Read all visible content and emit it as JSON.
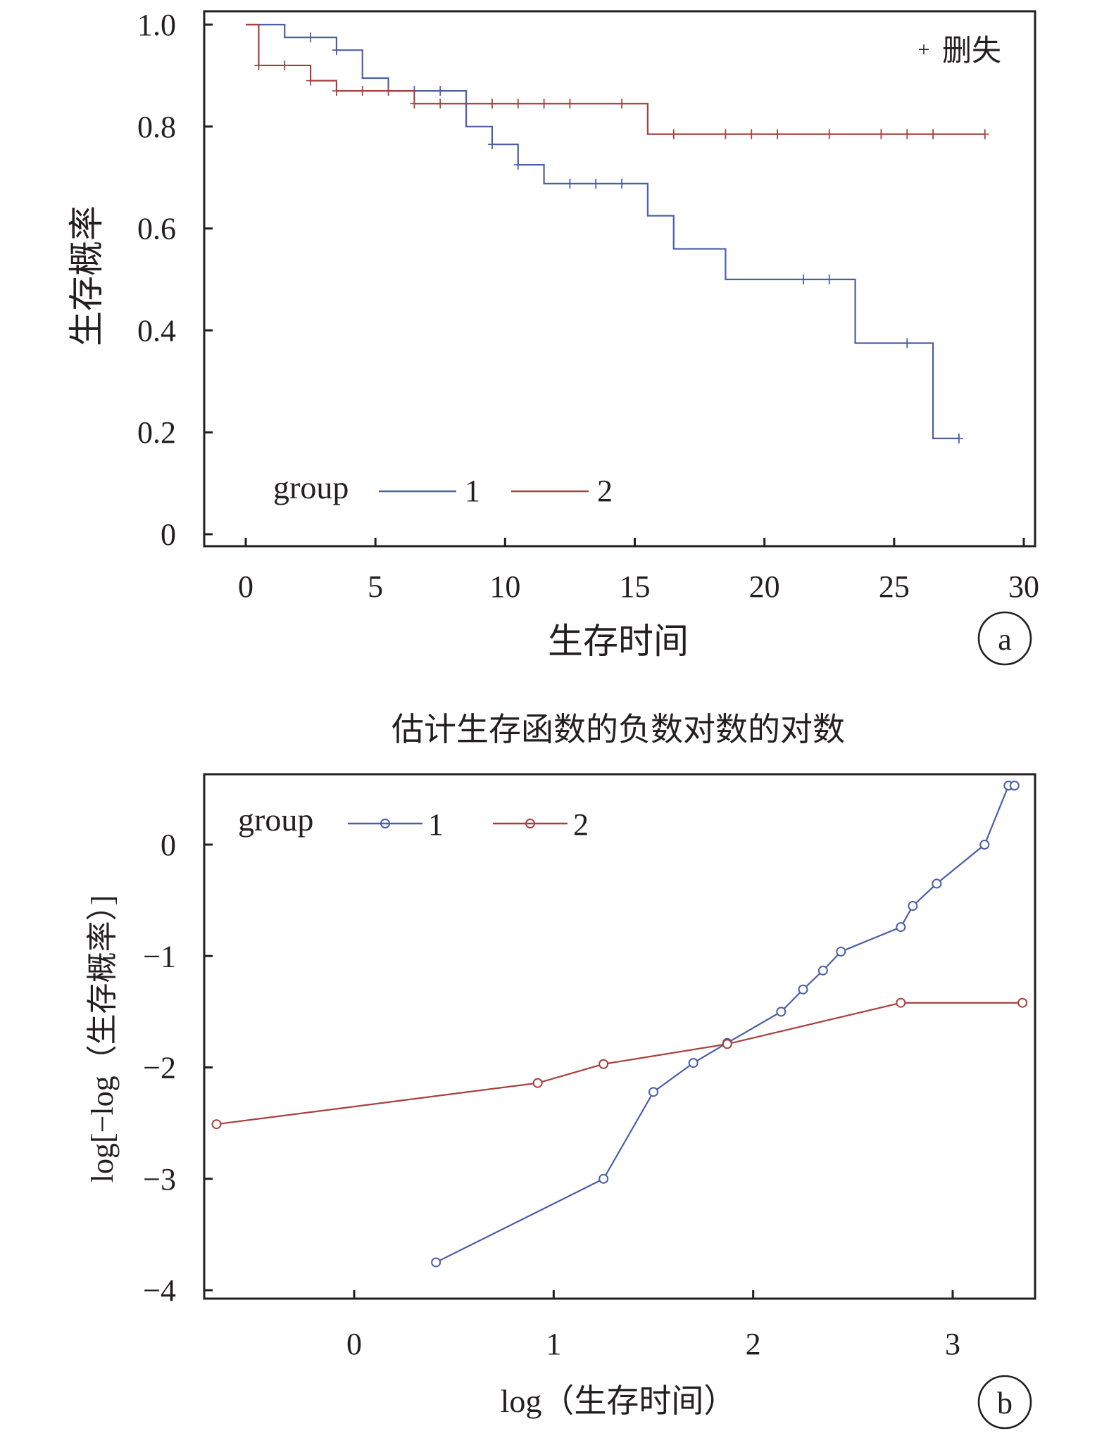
{
  "chart_data": [
    {
      "type": "line",
      "subtype": "kaplan-meier",
      "panel_label": "a",
      "title": "",
      "xlabel": "生存时间",
      "ylabel": "生存概率",
      "xlim": [
        -1.5,
        30.5
      ],
      "ylim": [
        -0.02,
        1.03
      ],
      "xticks": [
        0,
        5,
        10,
        15,
        20,
        25,
        30
      ],
      "xtick_labels": [
        "0",
        "5",
        "10",
        "15",
        "20",
        "25",
        "30"
      ],
      "yticks": [
        0,
        0.2,
        0.4,
        0.6,
        0.8,
        1.0
      ],
      "ytick_labels": [
        "0",
        "0.2",
        "0.4",
        "0.6",
        "0.8",
        "1.0"
      ],
      "grid": false,
      "legend_title": "group",
      "legend_position": "bottom-left",
      "censor_legend": {
        "symbol": "+",
        "label": "删失",
        "position": "top-right"
      },
      "series": [
        {
          "name": "1",
          "color": "#4b5ea8",
          "steps": [
            [
              0,
              1.0
            ],
            [
              1.5,
              0.975
            ],
            [
              3.5,
              0.95
            ],
            [
              4.5,
              0.895
            ],
            [
              5.5,
              0.87
            ],
            [
              8.5,
              0.8
            ],
            [
              9.5,
              0.765
            ],
            [
              10.5,
              0.725
            ],
            [
              11.5,
              0.688
            ],
            [
              15.5,
              0.625
            ],
            [
              16.5,
              0.56
            ],
            [
              18.5,
              0.5
            ],
            [
              23.5,
              0.375
            ],
            [
              26.5,
              0.188
            ],
            [
              27.5,
              0.188
            ]
          ],
          "censored": [
            [
              2.5,
              0.975
            ],
            [
              3.5,
              0.95
            ],
            [
              6.5,
              0.87
            ],
            [
              7.5,
              0.87
            ],
            [
              9.5,
              0.765
            ],
            [
              10.5,
              0.725
            ],
            [
              12.5,
              0.688
            ],
            [
              13.5,
              0.688
            ],
            [
              14.5,
              0.688
            ],
            [
              21.5,
              0.5
            ],
            [
              22.5,
              0.5
            ],
            [
              25.5,
              0.375
            ],
            [
              27.5,
              0.188
            ]
          ]
        },
        {
          "name": "2",
          "color": "#a6403e",
          "steps": [
            [
              0,
              1.0
            ],
            [
              0.5,
              0.92
            ],
            [
              2.5,
              0.89
            ],
            [
              3.5,
              0.87
            ],
            [
              6.5,
              0.845
            ],
            [
              15.5,
              0.785
            ],
            [
              28.5,
              0.785
            ]
          ],
          "censored": [
            [
              0.5,
              0.92
            ],
            [
              1.5,
              0.92
            ],
            [
              2.5,
              0.89
            ],
            [
              3.5,
              0.87
            ],
            [
              4.5,
              0.87
            ],
            [
              5.5,
              0.87
            ],
            [
              6.5,
              0.845
            ],
            [
              7.5,
              0.845
            ],
            [
              9.5,
              0.845
            ],
            [
              10.5,
              0.845
            ],
            [
              11.5,
              0.845
            ],
            [
              12.5,
              0.845
            ],
            [
              14.5,
              0.845
            ],
            [
              16.5,
              0.785
            ],
            [
              18.5,
              0.785
            ],
            [
              19.5,
              0.785
            ],
            [
              20.5,
              0.785
            ],
            [
              22.5,
              0.785
            ],
            [
              24.5,
              0.785
            ],
            [
              25.5,
              0.785
            ],
            [
              26.5,
              0.785
            ],
            [
              28.5,
              0.785
            ]
          ]
        }
      ]
    },
    {
      "type": "line",
      "subtype": "log-minus-log",
      "panel_label": "b",
      "title": "估计生存函数的负数对数的对数",
      "xlabel": "log（生存时间）",
      "ylabel": "log[−log（生存概率）]",
      "xlim": [
        -0.75,
        3.4
      ],
      "ylim": [
        -4.1,
        0.6
      ],
      "xticks": [
        0,
        1,
        2,
        3
      ],
      "xtick_labels": [
        "0",
        "1",
        "2",
        "3"
      ],
      "yticks": [
        0,
        -1,
        -2,
        -3,
        -4
      ],
      "ytick_labels": [
        "0",
        "−1",
        "−2",
        "−3",
        "−4"
      ],
      "grid": false,
      "legend_title": "group",
      "legend_position": "top-left",
      "series": [
        {
          "name": "1",
          "color": "#4b5ea8",
          "marker": "circle",
          "x": [
            0.41,
            1.25,
            1.5,
            1.7,
            1.87,
            2.14,
            2.25,
            2.35,
            2.44,
            2.74,
            2.8,
            2.92,
            3.16,
            3.28,
            3.31
          ],
          "y": [
            -3.75,
            -3.0,
            -2.22,
            -1.96,
            -1.78,
            -1.5,
            -1.3,
            -1.13,
            -0.96,
            -0.74,
            -0.55,
            -0.35,
            0.0,
            0.53,
            0.53
          ]
        },
        {
          "name": "2",
          "color": "#a6403e",
          "marker": "circle",
          "x": [
            -0.69,
            0.92,
            1.25,
            1.87,
            2.74,
            3.35
          ],
          "y": [
            -2.51,
            -2.14,
            -1.97,
            -1.79,
            -1.42,
            -1.42
          ]
        }
      ]
    }
  ]
}
